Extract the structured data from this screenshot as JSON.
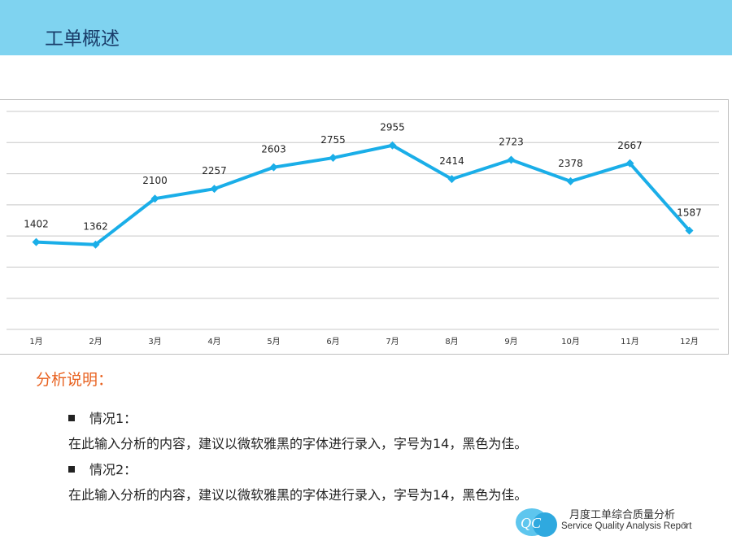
{
  "slide": {
    "title": "工单概述",
    "page_number": "3"
  },
  "chart_data": {
    "type": "line",
    "categories": [
      "1月",
      "2月",
      "3月",
      "4月",
      "5月",
      "6月",
      "7月",
      "8月",
      "9月",
      "10月",
      "11月",
      "12月"
    ],
    "values": [
      1402,
      1362,
      2100,
      2257,
      2603,
      2755,
      2955,
      2414,
      2723,
      2378,
      2667,
      1587
    ],
    "ylim": [
      0,
      3500
    ],
    "grid": true,
    "line_color": "#1aaee8",
    "data_labels": true,
    "title": "",
    "xlabel": "",
    "ylabel": ""
  },
  "analysis": {
    "heading": "分析说明：",
    "items": [
      {
        "label": "情况1：",
        "text": "在此输入分析的内容，建议以微软雅黑的字体进行录入，字号为14，黑色为佳。"
      },
      {
        "label": "情况2：",
        "text": "在此输入分析的内容，建议以微软雅黑的字体进行录入，字号为14，黑色为佳。"
      }
    ]
  },
  "footer": {
    "logo_text": "QC",
    "title": "月度工单综合质量分析",
    "subtitle": "Service Quality Analysis Report"
  },
  "colors": {
    "header": "#7fd3f0",
    "title": "#1a3d6a",
    "accent": "#e8611f"
  }
}
